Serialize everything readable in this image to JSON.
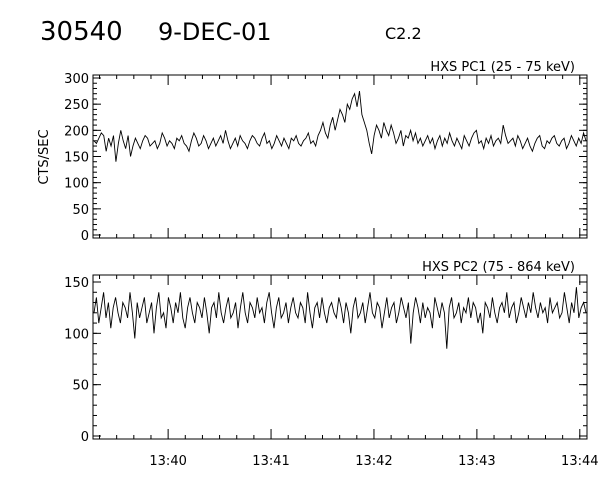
{
  "header": {
    "event_id": "30540",
    "date": "9-DEC-01",
    "goes_class": "C2.2"
  },
  "chart_data": [
    {
      "type": "line",
      "title": "HXS PC1 (25 - 75 keV)",
      "ylabel": "CTS/SEC",
      "xlabel": "",
      "x_tick_labels": [],
      "x_range_minutes": [
        39.27,
        44.07
      ],
      "ylim": [
        0,
        300
      ],
      "yticks": [
        0,
        50,
        100,
        150,
        200,
        250,
        300
      ],
      "series": [
        {
          "x_start": "13:39:16",
          "x_end": "13:44:04",
          "values": [
            180,
            175,
            185,
            195,
            190,
            160,
            185,
            170,
            190,
            140,
            175,
            200,
            180,
            165,
            190,
            150,
            170,
            185,
            175,
            165,
            180,
            190,
            185,
            170,
            175,
            180,
            165,
            175,
            195,
            185,
            170,
            180,
            175,
            165,
            185,
            180,
            190,
            175,
            170,
            160,
            180,
            195,
            185,
            170,
            175,
            190,
            180,
            165,
            175,
            185,
            170,
            180,
            190,
            175,
            200,
            180,
            165,
            175,
            185,
            170,
            190,
            180,
            175,
            165,
            180,
            190,
            185,
            175,
            170,
            185,
            195,
            175,
            180,
            165,
            175,
            190,
            180,
            170,
            185,
            175,
            165,
            185,
            180,
            190,
            175,
            170,
            180,
            185,
            195,
            175,
            180,
            170,
            190,
            200,
            215,
            195,
            185,
            210,
            225,
            200,
            220,
            240,
            230,
            215,
            250,
            240,
            260,
            270,
            245,
            275,
            230,
            215,
            200,
            175,
            155,
            190,
            210,
            200,
            185,
            215,
            200,
            190,
            210,
            195,
            175,
            185,
            200,
            170,
            190,
            185,
            200,
            180,
            195,
            175,
            185,
            170,
            180,
            190,
            175,
            185,
            165,
            180,
            190,
            170,
            185,
            175,
            195,
            180,
            170,
            185,
            175,
            165,
            190,
            180,
            170,
            185,
            195,
            200,
            175,
            180,
            165,
            185,
            175,
            190,
            170,
            180,
            185,
            175,
            210,
            190,
            175,
            180,
            185,
            170,
            190,
            180,
            165,
            175,
            185,
            170,
            160,
            175,
            185,
            190,
            170,
            165,
            180,
            175,
            185,
            190,
            175,
            170,
            180,
            185,
            165,
            175,
            190,
            180,
            170,
            185,
            175,
            195,
            180
          ]
        }
      ]
    },
    {
      "type": "line",
      "title": "HXS PC2 (75 - 864 keV)",
      "ylabel": "",
      "xlabel": "",
      "x_tick_labels": [
        "13:40",
        "13:41",
        "13:42",
        "13:43",
        "13:44"
      ],
      "x_range_minutes": [
        39.27,
        44.07
      ],
      "ylim": [
        0,
        150
      ],
      "yticks": [
        0,
        50,
        100,
        150
      ],
      "series": [
        {
          "x_start": "13:39:16",
          "x_end": "13:44:04",
          "values": [
            120,
            135,
            110,
            125,
            140,
            115,
            130,
            105,
            125,
            135,
            120,
            110,
            130,
            125,
            115,
            140,
            120,
            95,
            130,
            115,
            125,
            135,
            110,
            120,
            130,
            100,
            125,
            140,
            115,
            120,
            105,
            135,
            125,
            110,
            130,
            120,
            140,
            115,
            105,
            125,
            135,
            120,
            110,
            130,
            125,
            115,
            135,
            120,
            100,
            125,
            130,
            115,
            140,
            120,
            110,
            125,
            135,
            115,
            120,
            130,
            105,
            125,
            140,
            120,
            110,
            130,
            125,
            115,
            135,
            120,
            125,
            110,
            130,
            140,
            120,
            105,
            125,
            135,
            115,
            120,
            130,
            110,
            125,
            135,
            120,
            115,
            130,
            125,
            110,
            140,
            120,
            105,
            125,
            130,
            115,
            135,
            120,
            110,
            125,
            130,
            120,
            115,
            135,
            125,
            110,
            130,
            120,
            100,
            125,
            135,
            115,
            120,
            130,
            110,
            125,
            140,
            120,
            115,
            130,
            125,
            105,
            120,
            135,
            115,
            125,
            130,
            110,
            120,
            135,
            125,
            115,
            130,
            90,
            120,
            135,
            125,
            110,
            130,
            115,
            125,
            120,
            105,
            135,
            125,
            115,
            130,
            120,
            85,
            125,
            135,
            115,
            120,
            130,
            110,
            125,
            120,
            135,
            115,
            130,
            125,
            110,
            120,
            100,
            130,
            125,
            115,
            135,
            120,
            110,
            125,
            130,
            120,
            140,
            115,
            125,
            130,
            110,
            120,
            135,
            125,
            115,
            130,
            120,
            140,
            125,
            115,
            130,
            120,
            125,
            110,
            135,
            120,
            125,
            130,
            115,
            120,
            140,
            125,
            110,
            130,
            120,
            145,
            115,
            125,
            130,
            120
          ]
        }
      ]
    }
  ]
}
